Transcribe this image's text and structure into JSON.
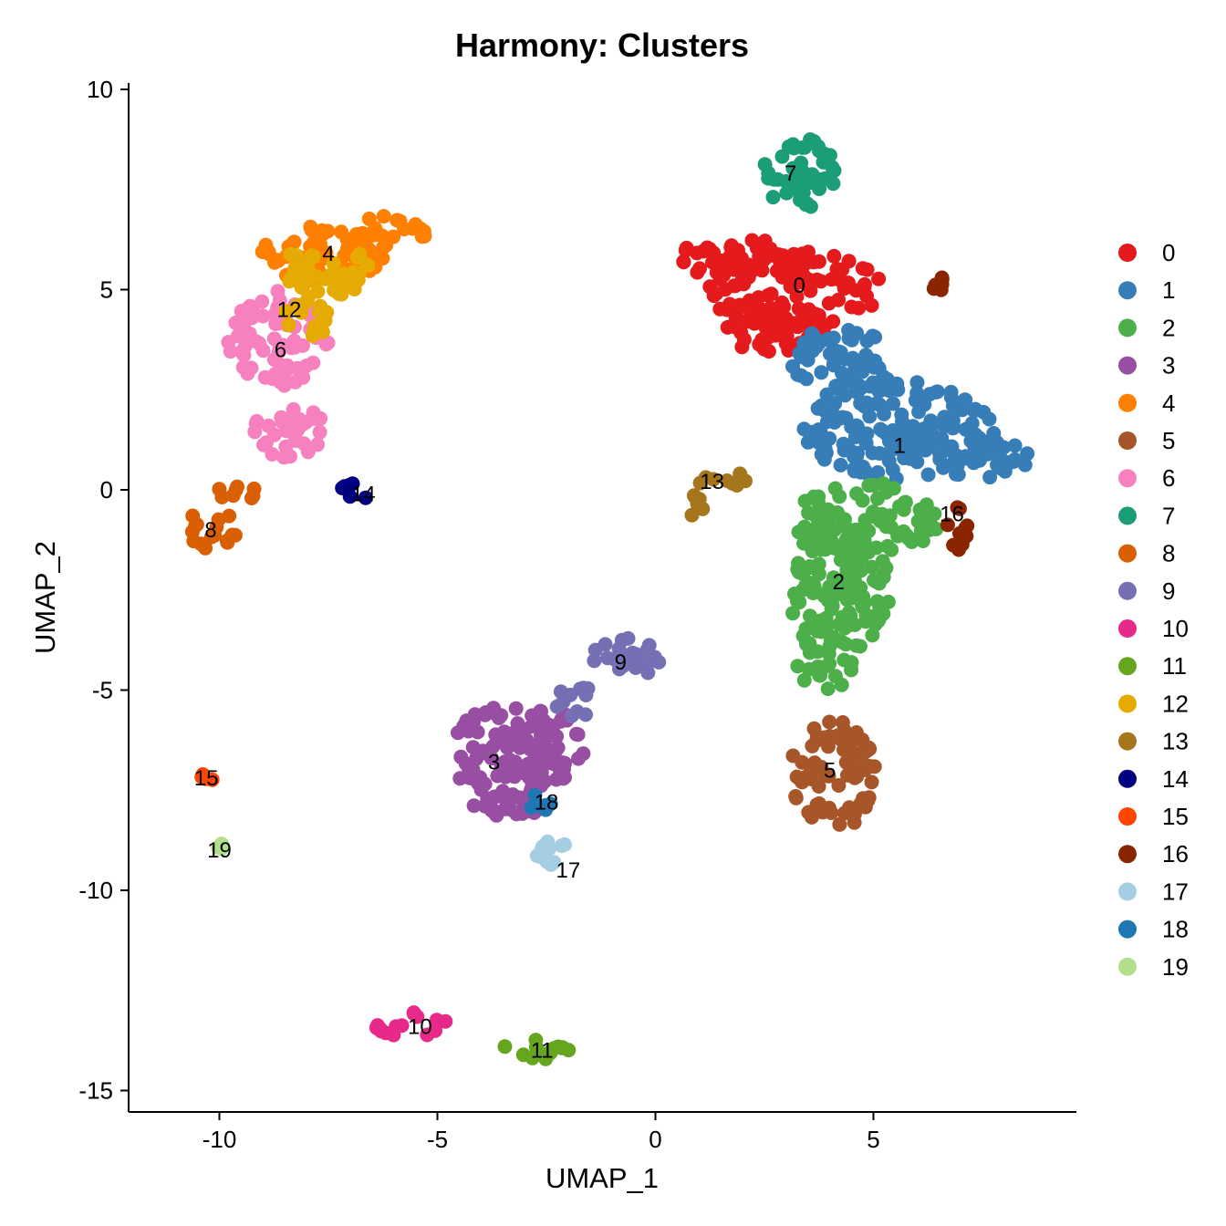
{
  "chart_data": {
    "type": "scatter",
    "title": "Harmony: Clusters",
    "xlabel": "UMAP_1",
    "ylabel": "UMAP_2",
    "xlim": [
      -12.1,
      9.6
    ],
    "ylim": [
      -15.6,
      10.2
    ],
    "xticks": [
      -10,
      -5,
      0,
      5
    ],
    "yticks": [
      -15,
      -10,
      -5,
      0,
      5,
      10
    ],
    "xtick_labels": [
      "-10",
      "-5",
      "0",
      "5"
    ],
    "ytick_labels": [
      "-15",
      "-10",
      "-5",
      "0",
      "5",
      "10"
    ],
    "legend_position": "right",
    "grid": false,
    "clusters": [
      {
        "name": "0",
        "color": "#E41A1C",
        "label_pos": [
          3.3,
          5.1
        ],
        "blobs": [
          [
            1.9,
            5.8,
            1.4,
            0.5
          ],
          [
            3.2,
            5.0,
            2.0,
            1.0
          ],
          [
            2.8,
            4.0,
            1.2,
            0.6
          ]
        ]
      },
      {
        "name": "1",
        "color": "#377EB8",
        "label_pos": [
          5.6,
          1.1
        ],
        "blobs": [
          [
            4.3,
            3.2,
            1.2,
            0.9
          ],
          [
            5.6,
            1.5,
            2.2,
            1.3
          ],
          [
            7.5,
            0.8,
            1.2,
            0.5
          ]
        ]
      },
      {
        "name": "2",
        "color": "#4DAF4A",
        "label_pos": [
          4.2,
          -2.3
        ],
        "blobs": [
          [
            4.8,
            -0.8,
            1.7,
            1.0
          ],
          [
            4.2,
            -2.5,
            1.2,
            1.6
          ],
          [
            3.9,
            -4.2,
            0.7,
            0.8
          ]
        ]
      },
      {
        "name": "3",
        "color": "#984EA3",
        "label_pos": [
          -3.7,
          -6.8
        ],
        "blobs": [
          [
            -3.4,
            -6.8,
            1.4,
            1.5
          ],
          [
            -2.5,
            -6.4,
            0.9,
            0.9
          ]
        ]
      },
      {
        "name": "4",
        "color": "#FF7F00",
        "label_pos": [
          -7.5,
          5.9
        ],
        "blobs": [
          [
            -7.6,
            5.9,
            1.5,
            0.7
          ],
          [
            -6.0,
            6.5,
            0.8,
            0.4
          ]
        ]
      },
      {
        "name": "5",
        "color": "#A65628",
        "label_pos": [
          4.0,
          -7.0
        ],
        "blobs": [
          [
            4.1,
            -7.1,
            1.0,
            1.4
          ]
        ]
      },
      {
        "name": "6",
        "color": "#F781BF",
        "label_pos": [
          -8.6,
          3.5
        ],
        "blobs": [
          [
            -8.6,
            3.8,
            1.2,
            1.2
          ],
          [
            -8.4,
            1.5,
            0.8,
            0.7
          ]
        ]
      },
      {
        "name": "7",
        "color": "#1B9E77",
        "label_pos": [
          3.1,
          7.9
        ],
        "blobs": [
          [
            3.3,
            7.9,
            0.9,
            0.9
          ]
        ]
      },
      {
        "name": "8",
        "color": "#D95F02",
        "label_pos": [
          -10.2,
          -1.0
        ],
        "blobs": [
          [
            -10.2,
            -1.0,
            0.6,
            0.5
          ],
          [
            -9.6,
            -0.1,
            0.5,
            0.3
          ]
        ]
      },
      {
        "name": "9",
        "color": "#7570B3",
        "label_pos": [
          -0.8,
          -4.3
        ],
        "blobs": [
          [
            -0.7,
            -4.2,
            0.8,
            0.5
          ],
          [
            -1.8,
            -5.3,
            0.5,
            0.4
          ]
        ]
      },
      {
        "name": "10",
        "color": "#E7298A",
        "label_pos": [
          -5.4,
          -13.4
        ],
        "blobs": [
          [
            -5.5,
            -13.4,
            0.9,
            0.35
          ]
        ]
      },
      {
        "name": "11",
        "color": "#66A61E",
        "label_pos": [
          -2.6,
          -14.0
        ],
        "blobs": [
          [
            -2.7,
            -13.9,
            0.8,
            0.35
          ]
        ]
      },
      {
        "name": "12",
        "color": "#E6AB02",
        "label_pos": [
          -8.4,
          4.5
        ],
        "blobs": [
          [
            -7.6,
            5.5,
            1.1,
            0.7
          ],
          [
            -8.0,
            4.3,
            0.5,
            0.6
          ]
        ]
      },
      {
        "name": "13",
        "color": "#A6761D",
        "label_pos": [
          1.3,
          0.2
        ],
        "blobs": [
          [
            1.5,
            0.3,
            0.6,
            0.25
          ],
          [
            0.9,
            -0.4,
            0.2,
            0.3
          ]
        ]
      },
      {
        "name": "14",
        "color": "#000080",
        "label_pos": [
          -6.7,
          -0.1
        ],
        "blobs": [
          [
            -6.9,
            0.0,
            0.35,
            0.3
          ]
        ]
      },
      {
        "name": "15",
        "color": "#FF4500",
        "label_pos": [
          -10.3,
          -7.2
        ],
        "blobs": [
          [
            -10.3,
            -7.2,
            0.15,
            0.15
          ]
        ]
      },
      {
        "name": "16",
        "color": "#8B2500",
        "label_pos": [
          6.8,
          -0.6
        ],
        "blobs": [
          [
            6.9,
            -1.0,
            0.3,
            0.6
          ],
          [
            6.5,
            5.3,
            0.3,
            0.35
          ]
        ]
      },
      {
        "name": "17",
        "color": "#A6CEE3",
        "label_pos": [
          -2.0,
          -9.5
        ],
        "blobs": [
          [
            -2.3,
            -9.2,
            0.5,
            0.45
          ]
        ]
      },
      {
        "name": "18",
        "color": "#1F78B4",
        "label_pos": [
          -2.5,
          -7.8
        ],
        "blobs": [
          [
            -2.7,
            -7.9,
            0.35,
            0.3
          ]
        ]
      },
      {
        "name": "19",
        "color": "#B2DF8A",
        "label_pos": [
          -10.0,
          -9.0
        ],
        "blobs": [
          [
            -10.0,
            -8.9,
            0.08,
            0.08
          ]
        ]
      }
    ]
  }
}
